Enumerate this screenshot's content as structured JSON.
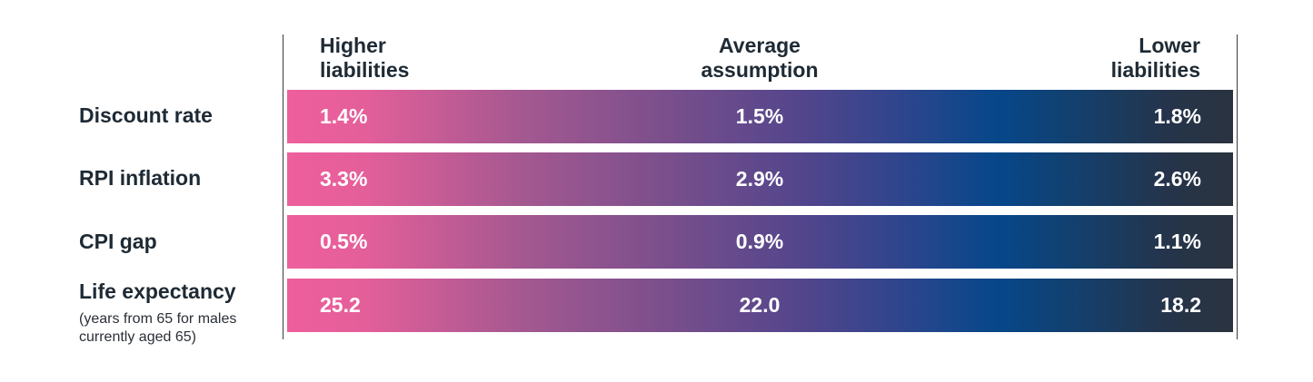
{
  "chart_data": {
    "type": "table",
    "columns": [
      "Higher\nliabilities",
      "Average\nassumption",
      "Lower\nliabilities"
    ],
    "rows": [
      {
        "label": "Discount rate",
        "sublabel": "",
        "values": [
          "1.4%",
          "1.5%",
          "1.8%"
        ]
      },
      {
        "label": "RPI inflation",
        "sublabel": "",
        "values": [
          "3.3%",
          "2.9%",
          "2.6%"
        ]
      },
      {
        "label": "CPI gap",
        "sublabel": "",
        "values": [
          "0.5%",
          "0.9%",
          "1.1%"
        ]
      },
      {
        "label": "Life expectancy",
        "sublabel": "(years from 65 for males currently aged 65)",
        "values": [
          "25.2",
          "22.0",
          "18.2"
        ]
      }
    ],
    "gradient_colors": [
      "#ee5f9c",
      "#7a4f8c",
      "#06478a",
      "#2a333f"
    ]
  }
}
